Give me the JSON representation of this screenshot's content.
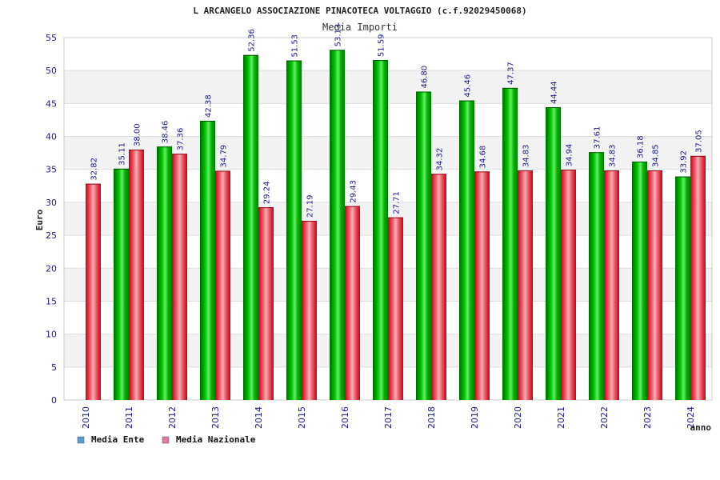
{
  "colors": {
    "ente": "#00aa00",
    "nazionale": "#e8202e",
    "legend_ente": "#5b9bd5",
    "legend_nazionale": "#e07ba5",
    "band": "#f2f2f2",
    "text_blue": "#1a1a8c"
  },
  "chart_data": {
    "type": "bar",
    "title": "L ARCANGELO ASSOCIAZIONE PINACOTECA VOLTAGGIO (c.f.92029450068)",
    "subtitle": "Media Importi",
    "xlabel": "anno",
    "ylabel": "Euro",
    "ylim": [
      0,
      55
    ],
    "yticks": [
      0,
      5,
      10,
      15,
      20,
      25,
      30,
      35,
      40,
      45,
      50,
      55
    ],
    "grid": true,
    "legend_position": "bottom-left",
    "categories": [
      "2010",
      "2011",
      "2012",
      "2013",
      "2014",
      "2015",
      "2016",
      "2017",
      "2018",
      "2019",
      "2020",
      "2021",
      "2022",
      "2023",
      "2024"
    ],
    "series": [
      {
        "name": "Media Ente",
        "values": [
          null,
          35.11,
          38.46,
          42.38,
          52.36,
          51.53,
          53.13,
          51.59,
          46.8,
          45.46,
          47.37,
          44.44,
          37.61,
          36.18,
          33.92
        ],
        "labels": [
          "",
          "35.11",
          "38.46",
          "42.38",
          "52.36",
          "51.53",
          "53.13",
          "51.59",
          "46.80",
          "45.46",
          "47.37",
          "44.44",
          "37.61",
          "36.18",
          "33.92"
        ]
      },
      {
        "name": "Media Nazionale",
        "values": [
          32.82,
          38.0,
          37.36,
          34.79,
          29.24,
          27.19,
          29.43,
          27.71,
          34.32,
          34.68,
          34.83,
          34.94,
          34.83,
          34.85,
          37.05
        ],
        "labels": [
          "32.82",
          "38.00",
          "37.36",
          "34.79",
          "29.24",
          "27.19",
          "29.43",
          "27.71",
          "34.32",
          "34.68",
          "34.83",
          "34.94",
          "34.83",
          "34.85",
          "37.05"
        ]
      }
    ]
  }
}
